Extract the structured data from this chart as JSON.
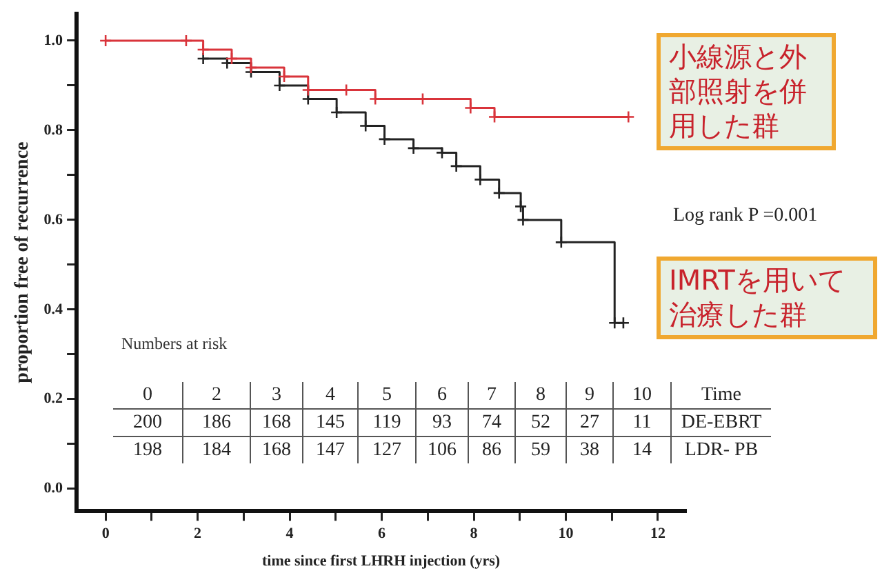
{
  "chart_data": {
    "type": "step",
    "xlabel": "time since first LHRH injection (yrs)",
    "ylabel": "proportion free of recurrence",
    "series": [
      {
        "name": "小線源と外部照射を併用した群",
        "color": "#d9343b",
        "x": [
          0,
          1.75,
          2.12,
          2.74,
          3.16,
          3.88,
          4.4,
          5.23,
          5.86,
          6.89,
          7.93,
          8.45,
          11.36
        ],
        "values": [
          1.0,
          1.0,
          0.98,
          0.96,
          0.94,
          0.92,
          0.89,
          0.89,
          0.87,
          0.87,
          0.85,
          0.83,
          0.83
        ]
      },
      {
        "name": "IMRTを用いて治療した群",
        "color": "#222222",
        "x": [
          2.12,
          2.64,
          3.16,
          3.78,
          4.4,
          5.02,
          5.65,
          6.06,
          6.69,
          7.31,
          7.62,
          8.14,
          8.55,
          9.02,
          9.07,
          9.9,
          11.06,
          11.25
        ],
        "values": [
          0.96,
          0.95,
          0.93,
          0.9,
          0.87,
          0.84,
          0.81,
          0.78,
          0.76,
          0.75,
          0.72,
          0.69,
          0.66,
          0.63,
          0.6,
          0.55,
          0.37,
          0.37
        ]
      }
    ],
    "xlim": [
      -0.63,
      12.6
    ],
    "xticks": [
      0,
      {
        "value": 1,
        "label": null
      },
      2,
      {
        "value": 3,
        "label": null
      },
      4,
      {
        "value": 5,
        "label": null
      },
      6,
      {
        "value": 7,
        "label": null
      },
      8,
      {
        "value": 9,
        "label": null
      },
      10,
      {
        "value": 11,
        "label": null
      },
      12
    ],
    "ylim": [
      -0.05,
      1.06
    ],
    "yticks": [
      {
        "value": 0,
        "label": "0.0"
      },
      {
        "value": 0.1,
        "label": null
      },
      {
        "value": 0.2,
        "label": "0.2"
      },
      {
        "value": 0.3,
        "label": null
      },
      {
        "value": 0.4,
        "label": "0.4"
      },
      {
        "value": 0.5,
        "label": null
      },
      {
        "value": 0.6,
        "label": "0.6"
      },
      {
        "value": 0.7,
        "label": null
      },
      {
        "value": 0.8,
        "label": "0.8"
      },
      {
        "value": 0.9,
        "label": null
      },
      {
        "value": 1,
        "label": "1.0"
      }
    ],
    "grid": false,
    "legend": false,
    "marker": "cross",
    "line_style": "solid",
    "annotations": [
      "Numbers at risk",
      "0",
      "2",
      "3",
      "4",
      "5",
      "6",
      "7",
      "8",
      "9",
      "10",
      "Time",
      "200",
      "186",
      "168",
      "145",
      "119",
      "93",
      "74",
      "52",
      "27",
      "11",
      "DE-EBRT",
      "198",
      "184",
      "168",
      "147",
      "127",
      "106",
      "86",
      "59",
      "38",
      "14",
      "LDR- PB",
      "Log rank P =0.001"
    ]
  }
}
